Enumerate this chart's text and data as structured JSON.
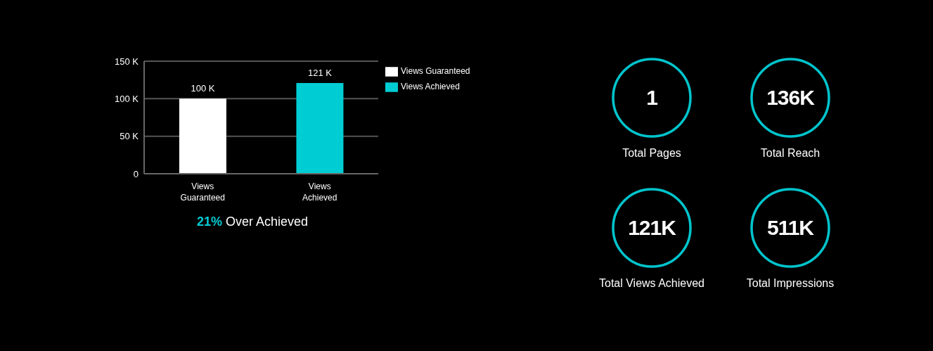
{
  "chart_data": [
    {
      "type": "bar",
      "categories": [
        "Views Guaranteed",
        "Views Achieved"
      ],
      "stacked": true,
      "series": [
        {
          "name": "Views Guaranteed",
          "color": "#ffffff",
          "values": [
            100,
            null
          ],
          "value_labels": [
            "100 K",
            null
          ]
        },
        {
          "name": "Views Achieved",
          "color": "#00ccd3",
          "values": [
            null,
            121
          ],
          "value_labels": [
            null,
            "121 K"
          ]
        }
      ],
      "ylim": [
        0,
        150
      ],
      "yticks": [
        {
          "value": 0,
          "label": "0"
        },
        {
          "value": 50,
          "label": "50 K"
        },
        {
          "value": 100,
          "label": "100 K"
        },
        {
          "value": 150,
          "label": "150 K"
        }
      ],
      "grid": "y",
      "legend": "right",
      "annotations": [
        "21% Over Achieved"
      ]
    },
    {
      "type": "other",
      "categories": [
        "Total Pages",
        "Total Reach",
        "Total Views Achieved",
        "Total Impressions"
      ],
      "value_labels": [
        "1",
        "136K",
        "121K",
        "511K"
      ],
      "color": "#00c4cc"
    }
  ]
}
